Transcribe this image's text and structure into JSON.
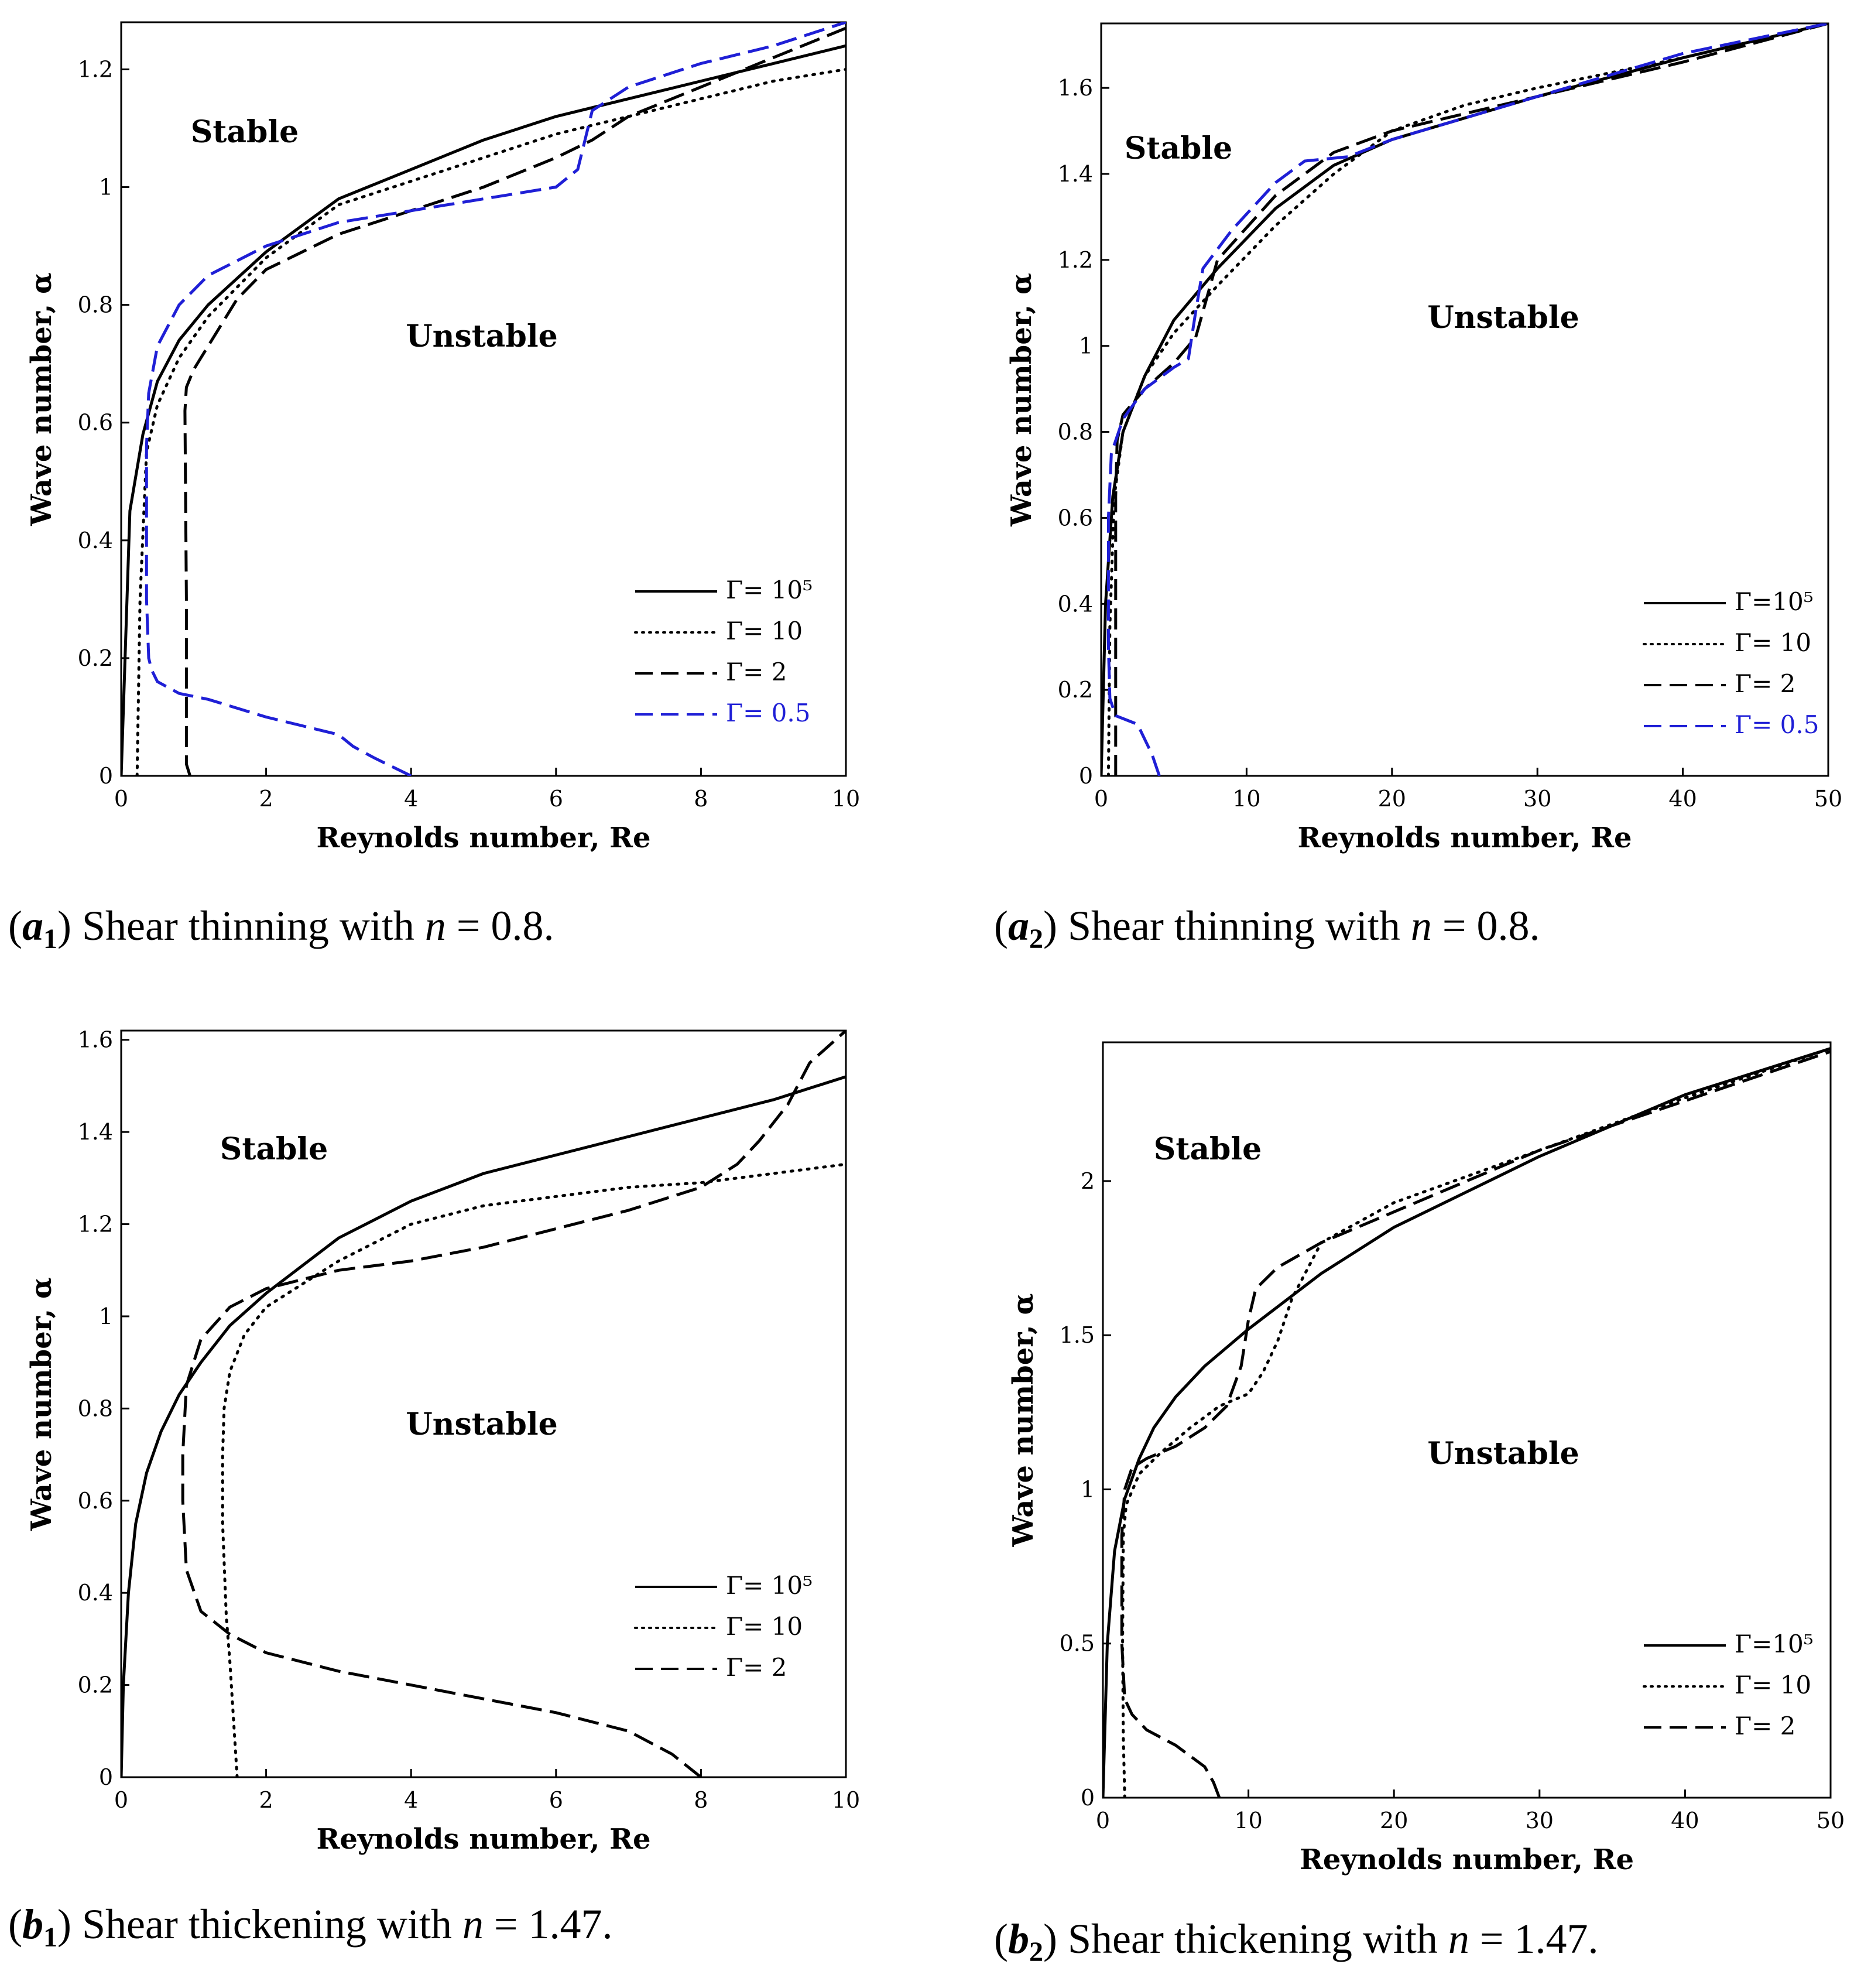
{
  "colors": {
    "black": "#000000",
    "blue": "#1f1fd6"
  },
  "chart_data": [
    {
      "id": "a1",
      "type": "line",
      "caption": {
        "label": "a",
        "sub": "1",
        "text": " Shear thinning with ",
        "var": "n",
        "eq": " = 0.8."
      },
      "xlabel": "Reynolds number, Re",
      "ylabel": "Wave number, α",
      "xlim": [
        0,
        10
      ],
      "ylim": [
        0,
        1.28
      ],
      "xticks": [
        0,
        2,
        4,
        6,
        8,
        10
      ],
      "yticks": [
        0,
        0.2,
        0.4,
        0.6,
        0.8,
        1,
        1.2
      ],
      "xtick_labels": [
        "0",
        "2",
        "4",
        "6",
        "8",
        "10"
      ],
      "ytick_labels": [
        "0",
        "0.2",
        "0.4",
        "0.6",
        "0.8",
        "1",
        "1.2"
      ],
      "region_labels": {
        "stable": "Stable",
        "unstable": "Unstable"
      },
      "legend_position": "lower-right",
      "series": [
        {
          "name": "Γ= 10⁵",
          "dash": "solid",
          "color": "#000000",
          "x": [
            0,
            0.12,
            0.3,
            0.5,
            0.8,
            1.2,
            2,
            3,
            4,
            5,
            6,
            7,
            8,
            9,
            10
          ],
          "y": [
            0,
            0.45,
            0.58,
            0.67,
            0.74,
            0.8,
            0.89,
            0.98,
            1.03,
            1.08,
            1.12,
            1.15,
            1.18,
            1.21,
            1.24
          ]
        },
        {
          "name": "Γ= 10",
          "dash": "dotted",
          "color": "#000000",
          "x": [
            0.22,
            0.26,
            0.35,
            0.5,
            0.8,
            1.2,
            2,
            3,
            4,
            5,
            6,
            7,
            8,
            9,
            10
          ],
          "y": [
            0,
            0.3,
            0.55,
            0.63,
            0.71,
            0.78,
            0.88,
            0.97,
            1.01,
            1.05,
            1.09,
            1.12,
            1.15,
            1.18,
            1.2
          ]
        },
        {
          "name": "Γ= 2",
          "dash": "longdash",
          "color": "#000000",
          "x": [
            0.95,
            0.9,
            0.9,
            0.88,
            0.9,
            1.0,
            1.3,
            1.6,
            2,
            3,
            4,
            5,
            6,
            6.5,
            7,
            8,
            9,
            10
          ],
          "y": [
            0,
            0.02,
            0.3,
            0.62,
            0.66,
            0.69,
            0.75,
            0.81,
            0.86,
            0.92,
            0.96,
            1.0,
            1.05,
            1.08,
            1.12,
            1.17,
            1.22,
            1.27
          ]
        },
        {
          "name": "Γ= 0.5",
          "dash": "longdash",
          "color": "#1f1fd6",
          "x": [
            4,
            3.5,
            3.2,
            3,
            2,
            1.2,
            0.8,
            0.5,
            0.42,
            0.38,
            0.35,
            0.35,
            0.38,
            0.5,
            0.8,
            1.2,
            2,
            3,
            4,
            5,
            6,
            6.3,
            6.5,
            7,
            8,
            9,
            10
          ],
          "y": [
            0,
            0.03,
            0.05,
            0.07,
            0.1,
            0.13,
            0.14,
            0.16,
            0.18,
            0.2,
            0.3,
            0.56,
            0.65,
            0.73,
            0.8,
            0.85,
            0.9,
            0.94,
            0.96,
            0.98,
            1.0,
            1.03,
            1.13,
            1.17,
            1.21,
            1.24,
            1.28
          ]
        }
      ]
    },
    {
      "id": "a2",
      "type": "line",
      "caption": {
        "label": "a",
        "sub": "2",
        "text": " Shear thinning with ",
        "var": "n",
        "eq": " = 0.8."
      },
      "xlabel": "Reynolds number, Re",
      "ylabel": "Wave number, α",
      "xlim": [
        0,
        50
      ],
      "ylim": [
        0,
        1.75
      ],
      "xticks": [
        0,
        10,
        20,
        30,
        40,
        50
      ],
      "yticks": [
        0,
        0.2,
        0.4,
        0.6,
        0.8,
        1,
        1.2,
        1.4,
        1.6
      ],
      "xtick_labels": [
        "0",
        "10",
        "20",
        "30",
        "40",
        "50"
      ],
      "ytick_labels": [
        "0",
        "0.2",
        "0.4",
        "0.6",
        "0.8",
        "1",
        "1.2",
        "1.4",
        "1.6"
      ],
      "region_labels": {
        "stable": "Stable",
        "unstable": "Unstable"
      },
      "legend_position": "lower-right",
      "series": [
        {
          "name": "Γ=10⁵",
          "dash": "solid",
          "color": "#000000",
          "x": [
            0,
            0.3,
            0.8,
            1.5,
            3,
            5,
            8,
            12,
            16,
            20,
            30,
            40,
            50
          ],
          "y": [
            0,
            0.4,
            0.65,
            0.8,
            0.93,
            1.06,
            1.18,
            1.32,
            1.42,
            1.48,
            1.58,
            1.67,
            1.75
          ]
        },
        {
          "name": "Γ= 10",
          "dash": "dotted",
          "color": "#000000",
          "x": [
            0.5,
            0.6,
            0.9,
            1.5,
            3,
            5,
            8,
            12,
            16,
            20,
            25,
            30,
            40,
            50
          ],
          "y": [
            0,
            0.35,
            0.65,
            0.8,
            0.93,
            1.03,
            1.14,
            1.28,
            1.4,
            1.5,
            1.56,
            1.6,
            1.67,
            1.75
          ]
        },
        {
          "name": "Γ= 2",
          "dash": "longdash",
          "color": "#000000",
          "x": [
            1.0,
            1.0,
            1.0,
            1.1,
            1.5,
            3,
            5,
            6.5,
            8,
            12,
            16,
            20,
            30,
            40,
            50
          ],
          "y": [
            0,
            0.3,
            0.65,
            0.78,
            0.84,
            0.9,
            0.96,
            1.02,
            1.2,
            1.35,
            1.45,
            1.5,
            1.58,
            1.66,
            1.75
          ]
        },
        {
          "name": "Γ= 0.5",
          "dash": "longdash",
          "color": "#1f1fd6",
          "x": [
            4,
            3.5,
            2.5,
            1.0,
            0.6,
            0.5,
            0.5,
            0.7,
            1.5,
            3,
            5,
            6,
            6.5,
            7,
            9,
            12,
            14,
            17,
            20,
            30,
            40,
            50
          ],
          "y": [
            0,
            0.05,
            0.12,
            0.14,
            0.18,
            0.3,
            0.6,
            0.75,
            0.83,
            0.9,
            0.95,
            0.97,
            1.08,
            1.18,
            1.27,
            1.38,
            1.43,
            1.44,
            1.48,
            1.58,
            1.68,
            1.75
          ]
        }
      ]
    },
    {
      "id": "b1",
      "type": "line",
      "caption": {
        "label": "b",
        "sub": "1",
        "text": " Shear thickening with ",
        "var": "n",
        "eq": " = 1.47."
      },
      "xlabel": "Reynolds number, Re",
      "ylabel": "Wave number, α",
      "xlim": [
        0,
        10
      ],
      "ylim": [
        0,
        1.62
      ],
      "xticks": [
        0,
        2,
        4,
        6,
        8,
        10
      ],
      "yticks": [
        0,
        0.2,
        0.4,
        0.6,
        0.8,
        1,
        1.2,
        1.4,
        1.6
      ],
      "xtick_labels": [
        "0",
        "2",
        "4",
        "6",
        "8",
        "10"
      ],
      "ytick_labels": [
        "0",
        "0.2",
        "0.4",
        "0.6",
        "0.8",
        "1",
        "1.2",
        "1.4",
        "1.6"
      ],
      "region_labels": {
        "stable": "Stable",
        "unstable": "Unstable"
      },
      "legend_position": "lower-right",
      "series": [
        {
          "name": "Γ= 10⁵",
          "dash": "solid",
          "color": "#000000",
          "x": [
            0,
            0.03,
            0.1,
            0.2,
            0.35,
            0.55,
            0.8,
            1.1,
            1.5,
            2,
            3,
            4,
            5,
            6,
            7,
            8,
            9,
            10
          ],
          "y": [
            0,
            0.2,
            0.4,
            0.55,
            0.66,
            0.75,
            0.83,
            0.9,
            0.98,
            1.05,
            1.17,
            1.25,
            1.31,
            1.35,
            1.39,
            1.43,
            1.47,
            1.52
          ]
        },
        {
          "name": "Γ= 10",
          "dash": "dotted",
          "color": "#000000",
          "x": [
            1.6,
            1.5,
            1.45,
            1.4,
            1.4,
            1.42,
            1.5,
            1.7,
            2,
            3,
            4,
            5,
            6,
            7,
            8,
            9,
            10
          ],
          "y": [
            0,
            0.25,
            0.35,
            0.55,
            0.7,
            0.8,
            0.88,
            0.96,
            1.02,
            1.12,
            1.2,
            1.24,
            1.26,
            1.28,
            1.29,
            1.31,
            1.33
          ]
        },
        {
          "name": "Γ= 2",
          "dash": "longdash",
          "color": "#000000",
          "x": [
            8,
            7.6,
            7,
            6,
            5,
            4,
            3,
            2,
            1.5,
            1.1,
            0.9,
            0.85,
            0.85,
            0.9,
            1.1,
            1.5,
            2,
            2.5,
            3,
            4,
            5,
            6,
            7,
            8,
            8.5,
            8.8,
            9.2,
            9.5,
            10
          ],
          "y": [
            0,
            0.05,
            0.1,
            0.14,
            0.17,
            0.2,
            0.23,
            0.27,
            0.31,
            0.36,
            0.45,
            0.6,
            0.7,
            0.85,
            0.95,
            1.02,
            1.06,
            1.08,
            1.1,
            1.12,
            1.15,
            1.19,
            1.23,
            1.28,
            1.33,
            1.38,
            1.46,
            1.55,
            1.62
          ]
        }
      ]
    },
    {
      "id": "b2",
      "type": "line",
      "caption": {
        "label": "b",
        "sub": "2",
        "text": " Shear thickening with ",
        "var": "n",
        "eq": " = 1.47."
      },
      "xlabel": "Reynolds number, Re",
      "ylabel": "Wave number, α",
      "xlim": [
        0,
        50
      ],
      "ylim": [
        0,
        2.45
      ],
      "xticks": [
        0,
        10,
        20,
        30,
        40,
        50
      ],
      "yticks": [
        0,
        0.5,
        1,
        1.5,
        2
      ],
      "xtick_labels": [
        "0",
        "10",
        "20",
        "30",
        "40",
        "50"
      ],
      "ytick_labels": [
        "0",
        "0.5",
        "1",
        "1.5",
        "2"
      ],
      "region_labels": {
        "stable": "Stable",
        "unstable": "Unstable"
      },
      "legend_position": "lower-right",
      "series": [
        {
          "name": "Γ=10⁵",
          "dash": "solid",
          "color": "#000000",
          "x": [
            0,
            0.3,
            0.8,
            1.5,
            2.5,
            3.5,
            5,
            7,
            10,
            15,
            20,
            30,
            40,
            50
          ],
          "y": [
            0,
            0.5,
            0.8,
            0.97,
            1.1,
            1.2,
            1.3,
            1.4,
            1.52,
            1.7,
            1.85,
            2.08,
            2.28,
            2.43
          ]
        },
        {
          "name": "Γ= 10",
          "dash": "dotted",
          "color": "#000000",
          "x": [
            1.5,
            1.4,
            1.35,
            1.4,
            1.6,
            2.5,
            4,
            6,
            8,
            10,
            11,
            12,
            13,
            15,
            20,
            30,
            40,
            50
          ],
          "y": [
            0,
            0.2,
            0.5,
            0.85,
            0.95,
            1.05,
            1.12,
            1.2,
            1.27,
            1.31,
            1.38,
            1.48,
            1.62,
            1.8,
            1.93,
            2.1,
            2.27,
            2.43
          ]
        },
        {
          "name": "Γ= 2",
          "dash": "longdash",
          "color": "#000000",
          "x": [
            8,
            7.6,
            7,
            5,
            3,
            2,
            1.5,
            1.3,
            1.3,
            1.5,
            2,
            3,
            5,
            7,
            8.5,
            9.5,
            10,
            10.5,
            12,
            15,
            20,
            25,
            30,
            40,
            50
          ],
          "y": [
            0,
            0.05,
            0.1,
            0.17,
            0.22,
            0.27,
            0.32,
            0.5,
            0.85,
            1.0,
            1.07,
            1.1,
            1.14,
            1.2,
            1.27,
            1.4,
            1.55,
            1.65,
            1.72,
            1.8,
            1.9,
            2.0,
            2.1,
            2.26,
            2.42
          ]
        }
      ]
    }
  ]
}
